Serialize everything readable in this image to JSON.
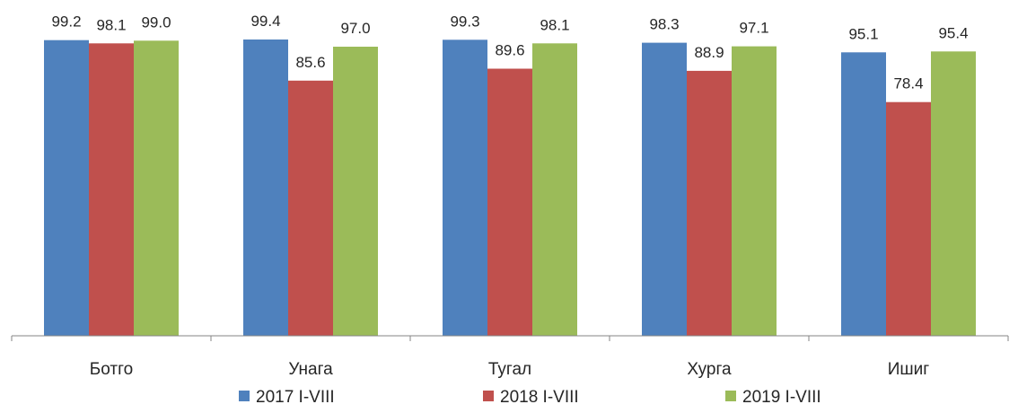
{
  "chart_data": {
    "type": "bar",
    "categories": [
      "Ботго",
      "Унага",
      "Тугал",
      "Хурга",
      "Ишиг"
    ],
    "series": [
      {
        "name": "2017 I-VIII",
        "color": "#4F81BD",
        "values": [
          99.2,
          99.4,
          99.3,
          98.3,
          95.1
        ],
        "labels": [
          "99.2",
          "99.4",
          "99.3",
          "98.3",
          "95.1"
        ]
      },
      {
        "name": "2018 I-VIII",
        "color": "#C0504D",
        "values": [
          98.1,
          85.6,
          89.6,
          88.9,
          78.4
        ],
        "labels": [
          "98.1",
          "85.6",
          "89.6",
          "88.9",
          "78.4"
        ]
      },
      {
        "name": "2019 I-VIII",
        "color": "#9BBB59",
        "values": [
          99.0,
          97.0,
          98.1,
          97.1,
          95.4
        ],
        "labels": [
          "99.0",
          "97.0",
          "98.1",
          "97.1",
          "95.4"
        ]
      }
    ],
    "ylim": [
      0,
      100
    ],
    "grid": false,
    "legend_position": "bottom"
  }
}
